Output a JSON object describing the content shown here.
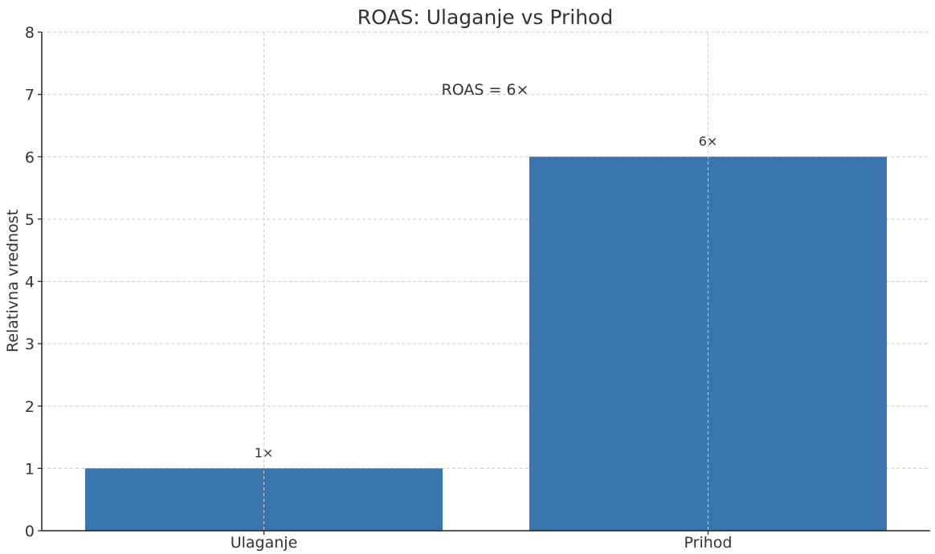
{
  "chart_data": {
    "type": "bar",
    "title": "ROAS: Ulaganje vs Prihod",
    "xlabel": "",
    "ylabel": "Relativna vrednost",
    "categories": [
      "Ulaganje",
      "Prihod"
    ],
    "values": [
      1,
      6
    ],
    "data_labels": [
      "1×",
      "6×"
    ],
    "annotation": "ROAS = 6×",
    "ylim": [
      0,
      8
    ],
    "yticks": [
      0,
      1,
      2,
      3,
      4,
      5,
      6,
      7,
      8
    ],
    "ytick_labels": [
      "0",
      "1",
      "2",
      "3",
      "4",
      "5",
      "6",
      "7",
      "8"
    ],
    "grid": true,
    "bar_color": "#3a75ae",
    "grid_color": "#cccccc",
    "axis_color": "#222222",
    "text_color": "#333333"
  }
}
